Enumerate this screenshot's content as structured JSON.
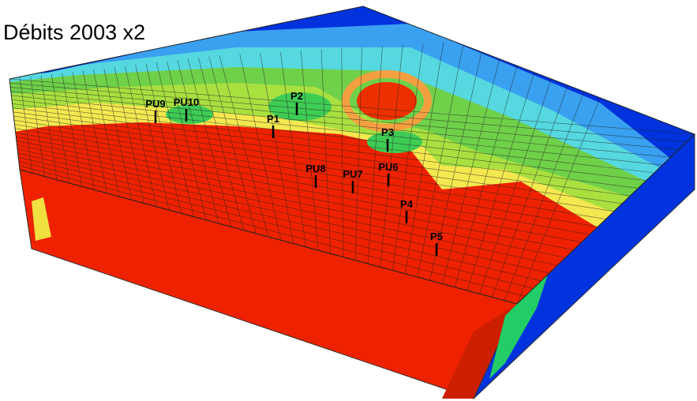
{
  "title": "Débits 2003 x2",
  "wells": [
    {
      "label": "PU9"
    },
    {
      "label": "PU10"
    },
    {
      "label": "P2"
    },
    {
      "label": "P1"
    },
    {
      "label": "P3"
    },
    {
      "label": "PU8"
    },
    {
      "label": "PU7"
    },
    {
      "label": "PU6"
    },
    {
      "label": "P4"
    },
    {
      "label": "P5"
    }
  ]
}
